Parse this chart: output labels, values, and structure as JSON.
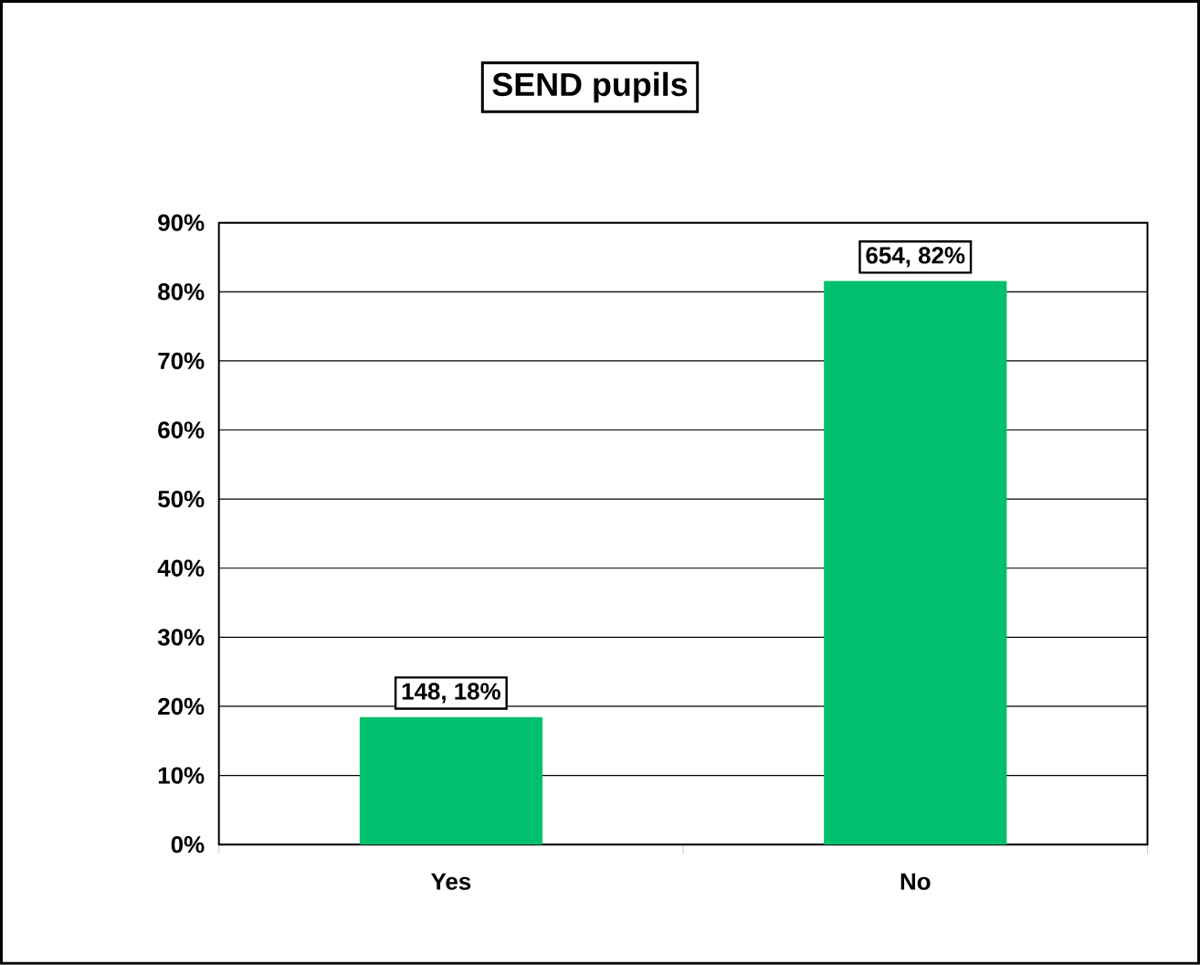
{
  "chart_data": {
    "type": "bar",
    "title": "SEND pupils",
    "categories": [
      "Yes",
      "No"
    ],
    "values": [
      18.45,
      81.55
    ],
    "color": "#00c06e",
    "value_labels": [
      "148, 18%",
      "654, 82%"
    ],
    "ylim": [
      0,
      90
    ],
    "yticks": [
      {
        "value": 0,
        "label": "0%"
      },
      {
        "value": 10,
        "label": "10%"
      },
      {
        "value": 20,
        "label": "20%"
      },
      {
        "value": 30,
        "label": "30%"
      },
      {
        "value": 40,
        "label": "40%"
      },
      {
        "value": 50,
        "label": "50%"
      },
      {
        "value": 60,
        "label": "60%"
      },
      {
        "value": 70,
        "label": "70%"
      },
      {
        "value": 80,
        "label": "80%"
      },
      {
        "value": 90,
        "label": "90%"
      }
    ],
    "grid": "y"
  }
}
